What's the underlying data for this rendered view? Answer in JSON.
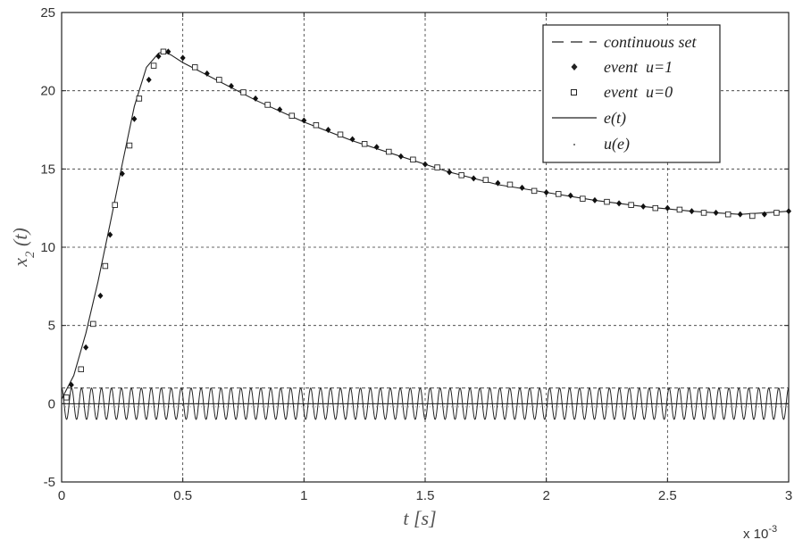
{
  "chart_data": {
    "type": "line",
    "xlabel": "t [s]",
    "ylabel": "x",
    "ylabel_sub": "2",
    "ylabel_tail": " (t)",
    "x_exponent_base": "x 10",
    "x_exponent_power": "-3",
    "xlim": [
      0,
      3
    ],
    "ylim": [
      -5,
      25
    ],
    "x_ticks": [
      0,
      0.5,
      1,
      1.5,
      2,
      2.5,
      3
    ],
    "x_tick_labels": [
      "0",
      "0.5",
      "1",
      "1.5",
      "2",
      "2.5",
      "3"
    ],
    "y_ticks": [
      -5,
      0,
      5,
      10,
      15,
      20,
      25
    ],
    "y_tick_labels": [
      "-5",
      "0",
      "5",
      "10",
      "15",
      "20",
      "25"
    ],
    "grid": true,
    "legend_position": "top-right",
    "legend": [
      {
        "label": "continuous set",
        "style": "dash"
      },
      {
        "label": "event  u=1",
        "style": "diamond"
      },
      {
        "label": "event  u=0",
        "style": "square"
      },
      {
        "label": "e(t)",
        "style": "solid"
      },
      {
        "label": "u(e)",
        "style": "dot"
      }
    ],
    "series": [
      {
        "name": "continuous set",
        "x": [
          0,
          0.05,
          0.1,
          0.15,
          0.2,
          0.25,
          0.3,
          0.35,
          0.4,
          0.42,
          0.45,
          0.5,
          0.6,
          0.7,
          0.8,
          0.9,
          1.0,
          1.2,
          1.4,
          1.6,
          1.8,
          2.0,
          2.2,
          2.4,
          2.6,
          2.8,
          3.0
        ],
        "y": [
          0.3,
          1.8,
          4.5,
          7.8,
          11.5,
          15.3,
          19.0,
          21.5,
          22.4,
          22.5,
          22.3,
          21.8,
          21.0,
          20.2,
          19.4,
          18.7,
          18.0,
          16.8,
          15.8,
          14.8,
          14.0,
          13.5,
          13.0,
          12.6,
          12.3,
          12.1,
          12.3
        ]
      },
      {
        "name": "event  u=1",
        "x": [
          0.04,
          0.1,
          0.16,
          0.2,
          0.25,
          0.3,
          0.36,
          0.4,
          0.44,
          0.5,
          0.6,
          0.7,
          0.8,
          0.9,
          1.0,
          1.1,
          1.2,
          1.3,
          1.4,
          1.5,
          1.6,
          1.7,
          1.8,
          1.9,
          2.0,
          2.1,
          2.2,
          2.3,
          2.4,
          2.5,
          2.6,
          2.7,
          2.8,
          2.9,
          3.0
        ],
        "y": [
          1.2,
          3.6,
          6.9,
          10.8,
          14.7,
          18.2,
          20.7,
          22.2,
          22.5,
          22.1,
          21.1,
          20.3,
          19.5,
          18.8,
          18.1,
          17.5,
          16.9,
          16.4,
          15.8,
          15.3,
          14.8,
          14.4,
          14.1,
          13.8,
          13.5,
          13.3,
          13.0,
          12.8,
          12.6,
          12.5,
          12.3,
          12.2,
          12.1,
          12.1,
          12.3
        ]
      },
      {
        "name": "event  u=0",
        "x": [
          0.02,
          0.08,
          0.13,
          0.18,
          0.22,
          0.28,
          0.32,
          0.38,
          0.42,
          0.55,
          0.65,
          0.75,
          0.85,
          0.95,
          1.05,
          1.15,
          1.25,
          1.35,
          1.45,
          1.55,
          1.65,
          1.75,
          1.85,
          1.95,
          2.05,
          2.15,
          2.25,
          2.35,
          2.45,
          2.55,
          2.65,
          2.75,
          2.85,
          2.95
        ],
        "y": [
          0.4,
          2.2,
          5.1,
          8.8,
          12.7,
          16.5,
          19.5,
          21.6,
          22.5,
          21.5,
          20.7,
          19.9,
          19.1,
          18.4,
          17.8,
          17.2,
          16.6,
          16.1,
          15.6,
          15.1,
          14.6,
          14.3,
          14.0,
          13.6,
          13.4,
          13.1,
          12.9,
          12.7,
          12.5,
          12.4,
          12.2,
          12.1,
          12.0,
          12.2
        ]
      },
      {
        "name": "e(t)",
        "baseline": 0,
        "amplitude": 1.0,
        "cycles": 73
      },
      {
        "name": "u(e)",
        "upper_level": 1.0,
        "lower_level": -0.2
      }
    ]
  }
}
